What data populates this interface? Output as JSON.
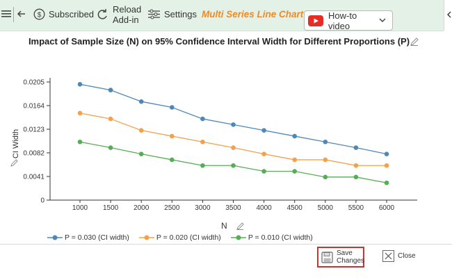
{
  "toolbar": {
    "subscribed_label": "Subscribed",
    "reload_label_1": "Reload",
    "reload_label_2": "Add-in",
    "settings_label": "Settings",
    "chart_type_label": "Multi Series Line Chart",
    "howto_label": "How-to video",
    "accent_color": "#f08a24",
    "toolbar_bg": "#e4f1e6"
  },
  "footer": {
    "save_label_1": "Save",
    "save_label_2": "Changes",
    "close_label": "Close",
    "save_highlight_color": "#d32f2f"
  },
  "chart_data": {
    "type": "line",
    "title": "Impact of Sample Size (N) on 95% Confidence Interval Width for Different Proportions (P)",
    "xlabel": "N",
    "ylabel": "CI Width",
    "categories": [
      "1000",
      "1500",
      "2000",
      "2500",
      "3000",
      "3500",
      "4000",
      "4500",
      "5000",
      "5500",
      "6000"
    ],
    "yticks": [
      "0",
      "0.0041",
      "0.0082",
      "0.0123",
      "0.0164",
      "0.0205"
    ],
    "ylim": [
      0,
      0.0205
    ],
    "grid": false,
    "legend_position": "bottom",
    "series": [
      {
        "name": "P = 0.030 (CI width)",
        "color": "#4f87b8",
        "values": [
          0.0201,
          0.0191,
          0.0171,
          0.0161,
          0.0141,
          0.0131,
          0.0121,
          0.0111,
          0.0101,
          0.0091,
          0.008
        ]
      },
      {
        "name": "P = 0.020 (CI width)",
        "color": "#f5a04a",
        "values": [
          0.0151,
          0.0141,
          0.0121,
          0.0111,
          0.0101,
          0.0091,
          0.008,
          0.007,
          0.007,
          0.006,
          0.006
        ]
      },
      {
        "name": "P = 0.010 (CI width)",
        "color": "#55ae55",
        "values": [
          0.0101,
          0.0091,
          0.008,
          0.007,
          0.006,
          0.006,
          0.005,
          0.005,
          0.004,
          0.004,
          0.003
        ]
      }
    ]
  }
}
